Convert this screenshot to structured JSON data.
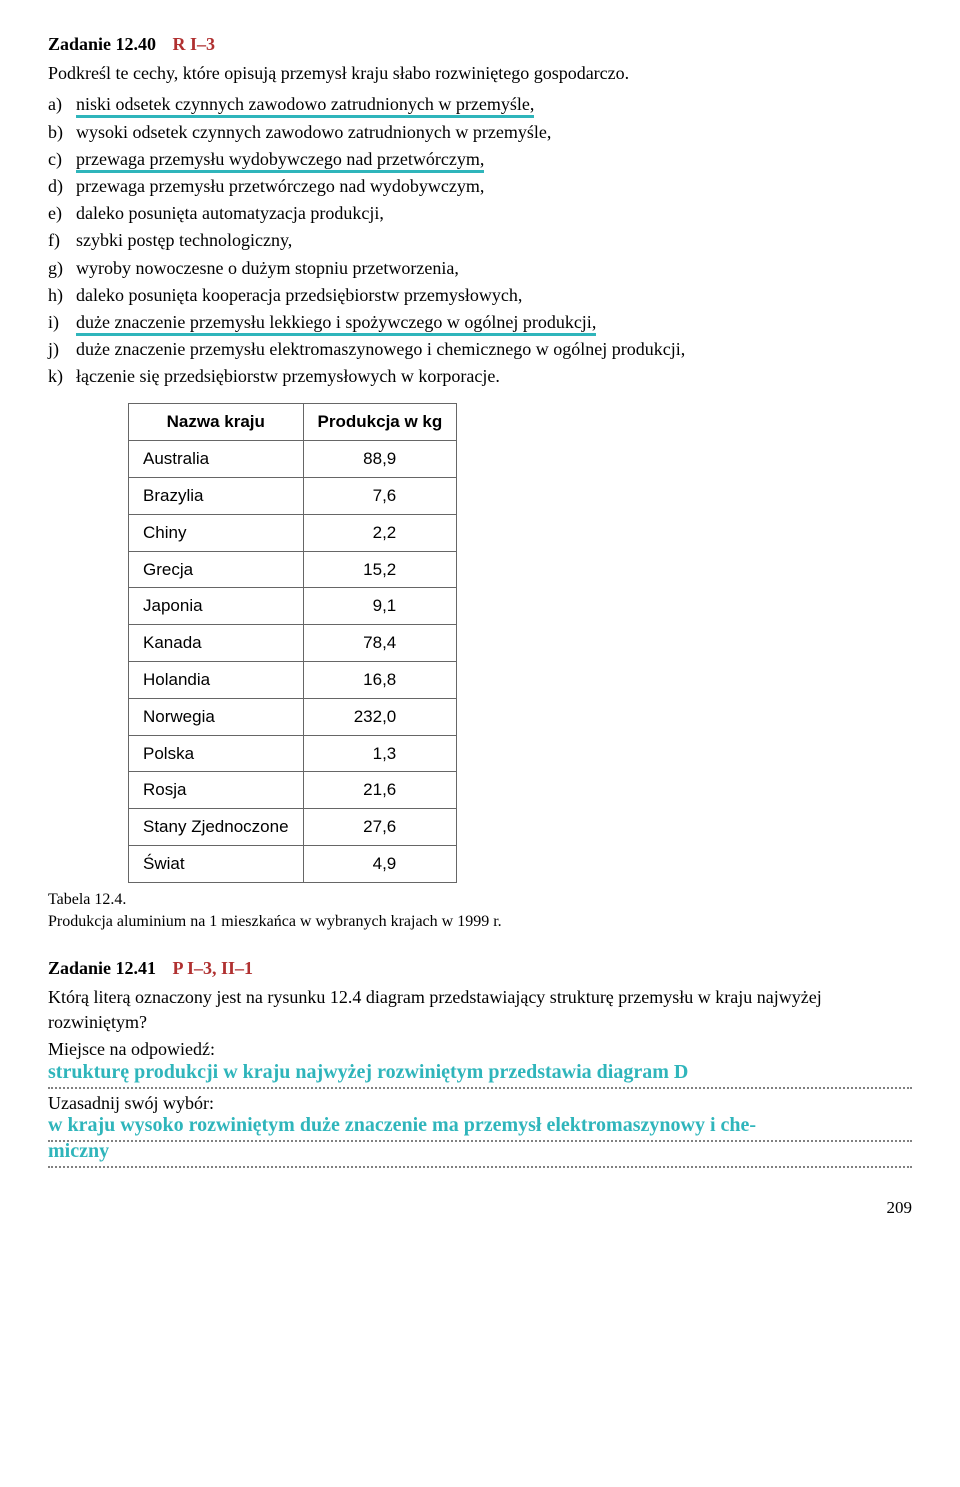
{
  "task1": {
    "number": "Zadanie 12.40",
    "code": "R  I–3",
    "instruction": "Podkreśl te cechy, które opisują przemysł kraju słabo rozwiniętego gospodarczo.",
    "options": [
      {
        "letter": "a)",
        "text": "niski odsetek czynnych zawodowo zatrudnionych w przemyśle,",
        "underlined": true
      },
      {
        "letter": "b)",
        "text": "wysoki odsetek czynnych zawodowo zatrudnionych w przemyśle,",
        "underlined": false
      },
      {
        "letter": "c)",
        "text": "przewaga przemysłu wydobywczego nad przetwórczym,",
        "underlined": true
      },
      {
        "letter": "d)",
        "text": "przewaga przemysłu przetwórczego nad wydobywczym,",
        "underlined": false
      },
      {
        "letter": "e)",
        "text": "daleko posunięta automatyzacja produkcji,",
        "underlined": false
      },
      {
        "letter": "f)",
        "text": "szybki postęp technologiczny,",
        "underlined": false
      },
      {
        "letter": "g)",
        "text": "wyroby nowoczesne o dużym stopniu przetworzenia,",
        "underlined": false
      },
      {
        "letter": "h)",
        "text": "daleko posunięta kooperacja przedsiębiorstw przemysłowych,",
        "underlined": false
      },
      {
        "letter": "i)",
        "text": "duże znaczenie przemysłu lekkiego i spożywczego w ogólnej produkcji,",
        "underlined": true
      },
      {
        "letter": "j)",
        "text": "duże znaczenie przemysłu elektromaszynowego i chemicznego w ogólnej produkcji,",
        "underlined": false
      },
      {
        "letter": "k)",
        "text": "łączenie się przedsiębiorstw przemysłowych w korporacje.",
        "underlined": false
      }
    ]
  },
  "table": {
    "header_country": "Nazwa kraju",
    "header_value": "Produkcja w kg",
    "rows": [
      {
        "country": "Australia",
        "value": "88,9"
      },
      {
        "country": "Brazylia",
        "value": "7,6"
      },
      {
        "country": "Chiny",
        "value": "2,2"
      },
      {
        "country": "Grecja",
        "value": "15,2"
      },
      {
        "country": "Japonia",
        "value": "9,1"
      },
      {
        "country": "Kanada",
        "value": "78,4"
      },
      {
        "country": "Holandia",
        "value": "16,8"
      },
      {
        "country": "Norwegia",
        "value": "232,0"
      },
      {
        "country": "Polska",
        "value": "1,3"
      },
      {
        "country": "Rosja",
        "value": "21,6"
      },
      {
        "country": "Stany Zjednoczone",
        "value": "27,6"
      },
      {
        "country": "Świat",
        "value": "4,9"
      }
    ],
    "caption_label": "Tabela 12.4.",
    "caption_text": "Produkcja aluminium na 1 mieszkańca w wybranych krajach w 1999 r."
  },
  "task2": {
    "number": "Zadanie 12.41",
    "code": "P  I–3, II–1",
    "question_part1": "Którą literą oznaczony jest na rysunku 12.4 diagram przedstawiający strukturę przemysłu w kraju najwyżej rozwiniętym?",
    "answer_prompt": "Miejsce na odpowiedź:",
    "answer_hw": "strukturę produkcji w kraju najwyżej rozwiniętym przedstawia diagram D",
    "justify_prompt": "Uzasadnij swój wybór:",
    "justify_hw1": "w kraju wysoko rozwiniętym duże znaczenie ma przemysł elektromaszynowy i che-",
    "justify_hw2": "miczny"
  },
  "page_number": "209",
  "colors": {
    "accent_red": "#b03030",
    "handwriting_cyan": "#2fb5bb",
    "underline_cyan": "#2fb5bb",
    "border_gray": "#666666"
  }
}
